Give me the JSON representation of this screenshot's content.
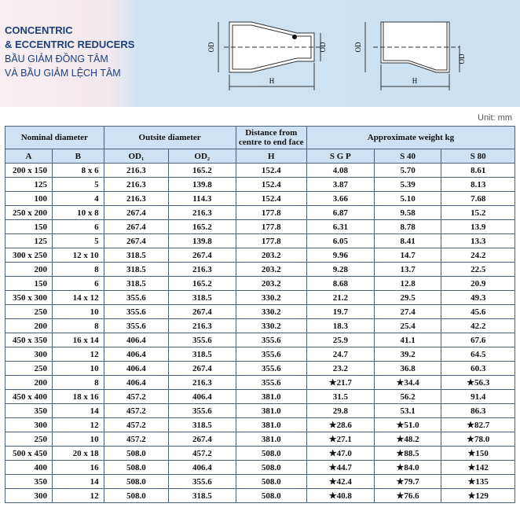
{
  "header": {
    "title": [
      "CONCENTRIC",
      "& ECCENTRIC REDUCERS",
      "BẦU GIẢM ĐỒNG TÂM",
      "VÀ BẦU GIẢM LỆCH TÂM"
    ],
    "concentric_labels": [
      "OD",
      "OD",
      "H"
    ],
    "eccentric_labels": [
      "OD",
      "OD",
      "H"
    ]
  },
  "unit": "Unit: mm",
  "table": {
    "group_headers": [
      "Nominal diameter",
      "Outsite diameter",
      "Distance from centre to end face",
      "Approximate weight kg"
    ],
    "columns": [
      "A",
      "B",
      "OD₁",
      "OD₂",
      "H",
      "S G P",
      "S 40",
      "S 80"
    ],
    "rows": [
      [
        "200 x 150",
        "8 x 6",
        "216.3",
        "165.2",
        "152.4",
        "4.08",
        "5.70",
        "8.61"
      ],
      [
        "125",
        "5",
        "216.3",
        "139.8",
        "152.4",
        "3.87",
        "5.39",
        "8.13"
      ],
      [
        "100",
        "4",
        "216.3",
        "114.3",
        "152.4",
        "3.66",
        "5.10",
        "7.68"
      ],
      [
        "250 x 200",
        "10 x 8",
        "267.4",
        "216.3",
        "177.8",
        "6.87",
        "9.58",
        "15.2"
      ],
      [
        "150",
        "6",
        "267.4",
        "165.2",
        "177.8",
        "6.31",
        "8.78",
        "13.9"
      ],
      [
        "125",
        "5",
        "267.4",
        "139.8",
        "177.8",
        "6.05",
        "8.41",
        "13.3"
      ],
      [
        "300 x 250",
        "12 x 10",
        "318.5",
        "267.4",
        "203.2",
        "9.96",
        "14.7",
        "24.2"
      ],
      [
        "200",
        "8",
        "318.5",
        "216.3",
        "203.2",
        "9.28",
        "13.7",
        "22.5"
      ],
      [
        "150",
        "6",
        "318.5",
        "165.2",
        "203.2",
        "8.68",
        "12.8",
        "20.9"
      ],
      [
        "350 x 300",
        "14 x 12",
        "355.6",
        "318.5",
        "330.2",
        "21.2",
        "29.5",
        "49.3"
      ],
      [
        "250",
        "10",
        "355.6",
        "267.4",
        "330.2",
        "19.7",
        "27.4",
        "45.6"
      ],
      [
        "200",
        "8",
        "355.6",
        "216.3",
        "330.2",
        "18.3",
        "25.4",
        "42.2"
      ],
      [
        "450 x 350",
        "16 x 14",
        "406.4",
        "355.6",
        "355.6",
        "25.9",
        "41.1",
        "67.6"
      ],
      [
        "300",
        "12",
        "406.4",
        "318.5",
        "355.6",
        "24.7",
        "39.2",
        "64.5"
      ],
      [
        "250",
        "10",
        "406.4",
        "267.4",
        "355.6",
        "23.2",
        "36.8",
        "60.3"
      ],
      [
        "200",
        "8",
        "406.4",
        "216.3",
        "355.6",
        "★21.7",
        "★34.4",
        "★56.3"
      ],
      [
        "450 x 400",
        "18 x 16",
        "457.2",
        "406.4",
        "381.0",
        "31.5",
        "56.2",
        "91.4"
      ],
      [
        "350",
        "14",
        "457.2",
        "355.6",
        "381.0",
        "29.8",
        "53.1",
        "86.3"
      ],
      [
        "300",
        "12",
        "457.2",
        "318.5",
        "381.0",
        "★28.6",
        "★51.0",
        "★82.7"
      ],
      [
        "250",
        "10",
        "457.2",
        "267.4",
        "381.0",
        "★27.1",
        "★48.2",
        "★78.0"
      ],
      [
        "500 x 450",
        "20 x 18",
        "508.0",
        "457.2",
        "508.0",
        "★47.0",
        "★88.5",
        "★150"
      ],
      [
        "400",
        "16",
        "508.0",
        "406.4",
        "508.0",
        "★44.7",
        "★84.0",
        "★142"
      ],
      [
        "350",
        "14",
        "508.0",
        "355.6",
        "508.0",
        "★42.4",
        "★79.7",
        "★135"
      ],
      [
        "300",
        "12",
        "508.0",
        "318.5",
        "508.0",
        "★40.8",
        "★76.6",
        "★129"
      ]
    ]
  }
}
